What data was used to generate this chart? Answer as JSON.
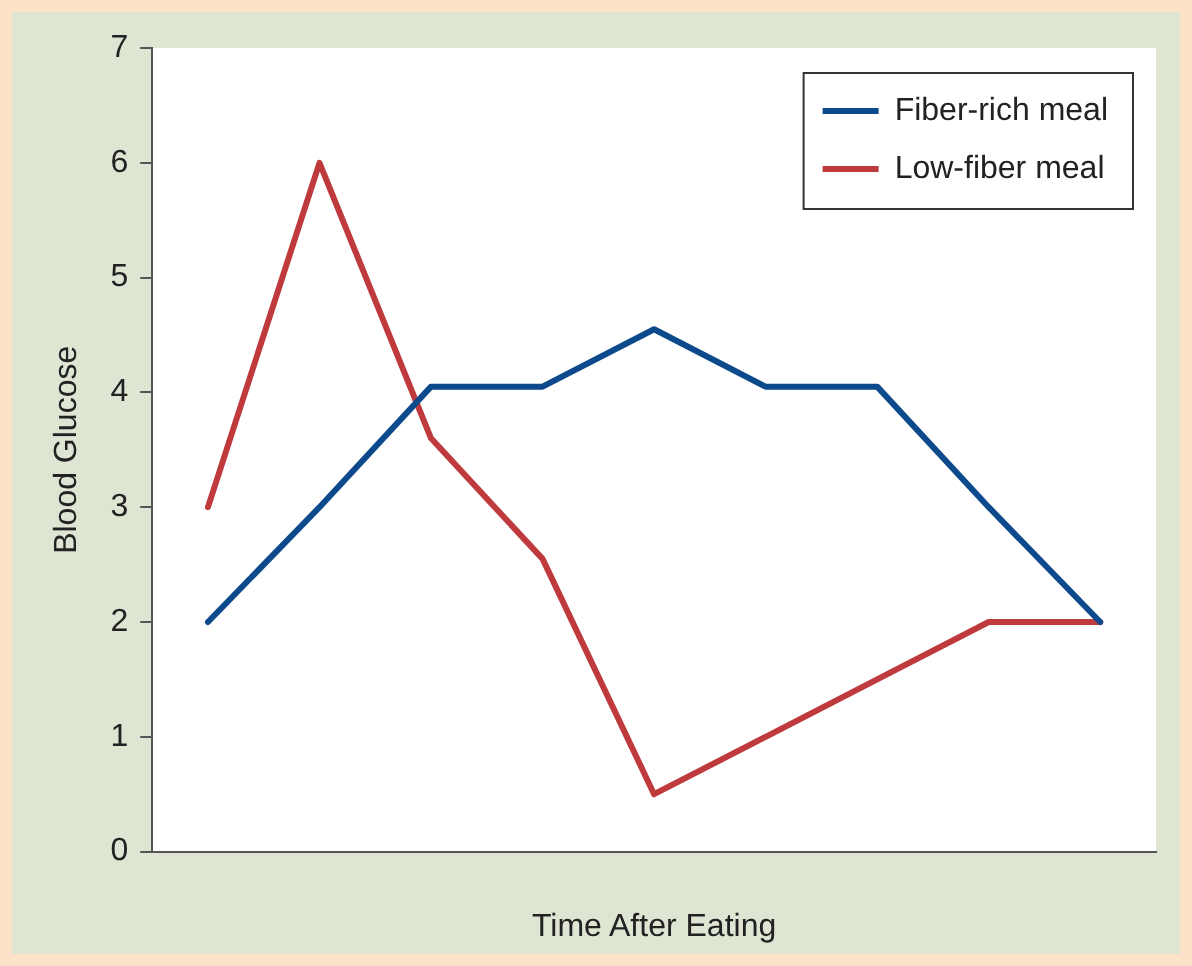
{
  "chart_data": {
    "type": "line",
    "xlabel": "Time After Eating",
    "ylabel": "Blood Glucose",
    "categories": [
      null,
      null,
      null,
      null,
      null,
      null,
      null,
      null,
      null
    ],
    "series": [
      {
        "name": "Fiber-rich meal",
        "color": "#0d4a8c",
        "values": [
          2,
          3,
          4.05,
          4.05,
          4.55,
          4.05,
          4.05,
          3,
          2
        ]
      },
      {
        "name": "Low-fiber meal",
        "color": "#bf3a3c",
        "values": [
          3,
          6,
          3.6,
          2.55,
          0.5,
          1,
          1.5,
          2,
          2
        ]
      }
    ],
    "ylim": [
      0,
      7
    ],
    "yticks": [
      0,
      1,
      2,
      3,
      4,
      5,
      6,
      7
    ],
    "grid": false,
    "legend": "top right",
    "marker": "none",
    "line_style": "solid"
  }
}
